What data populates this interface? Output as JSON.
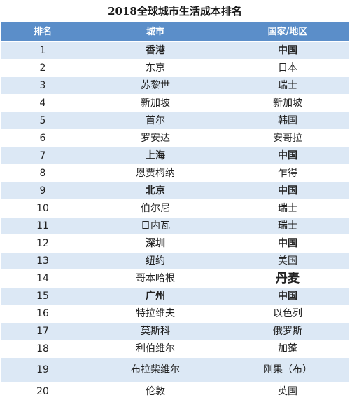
{
  "title": "2018全球城市生活成本排名",
  "headers": {
    "rank": "排名",
    "city": "城市",
    "country": "国家/地区"
  },
  "rows": [
    {
      "rank": "1",
      "city": "香港",
      "country": "中国"
    },
    {
      "rank": "2",
      "city": "东京",
      "country": "日本"
    },
    {
      "rank": "3",
      "city": "苏黎世",
      "country": "瑞士"
    },
    {
      "rank": "4",
      "city": "新加坡",
      "country": "新加坡"
    },
    {
      "rank": "5",
      "city": "首尔",
      "country": "韩国"
    },
    {
      "rank": "6",
      "city": "罗安达",
      "country": "安哥拉"
    },
    {
      "rank": "7",
      "city": "上海",
      "country": "中国"
    },
    {
      "rank": "8",
      "city": "恩贾梅纳",
      "country": "乍得"
    },
    {
      "rank": "9",
      "city": "北京",
      "country": "中国"
    },
    {
      "rank": "10",
      "city": "伯尔尼",
      "country": "瑞士"
    },
    {
      "rank": "11",
      "city": "日内瓦",
      "country": "瑞士"
    },
    {
      "rank": "12",
      "city": "深圳",
      "country": "中国"
    },
    {
      "rank": "13",
      "city": "纽约",
      "country": "美国"
    },
    {
      "rank": "14",
      "city": "哥本哈根",
      "country": "丹麦"
    },
    {
      "rank": "15",
      "city": "广州",
      "country": "中国"
    },
    {
      "rank": "16",
      "city": "特拉维夫",
      "country": "以色列"
    },
    {
      "rank": "17",
      "city": "莫斯科",
      "country": "俄罗斯"
    },
    {
      "rank": "18",
      "city": "利伯维尔",
      "country": "加蓬"
    },
    {
      "rank": "19",
      "city": "布拉柴维尔",
      "country": "刚果（布）"
    },
    {
      "rank": "20",
      "city": "伦敦",
      "country": "英国"
    }
  ]
}
